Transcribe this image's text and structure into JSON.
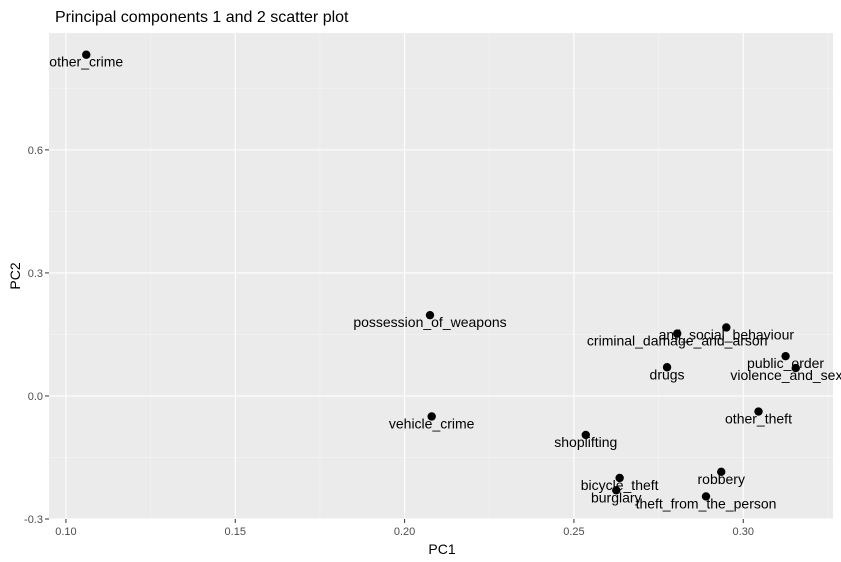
{
  "chart_data": {
    "type": "scatter",
    "title": "Principal components 1 and 2 scatter plot",
    "xlabel": "PC1",
    "ylabel": "PC2",
    "xlim": [
      0.095,
      0.3265
    ],
    "ylim": [
      -0.3,
      0.885
    ],
    "xticks": [
      0.1,
      0.15,
      0.2,
      0.25,
      0.3
    ],
    "xtick_labels": [
      "0.10",
      "0.15",
      "0.20",
      "0.25",
      "0.30"
    ],
    "yticks": [
      -0.3,
      0.0,
      0.3,
      0.6
    ],
    "ytick_labels": [
      "-0.3",
      "0.0",
      "0.3",
      "0.6"
    ],
    "grid": true,
    "points": [
      {
        "label": "other_crime",
        "x": 0.106,
        "y": 0.832
      },
      {
        "label": "possession_of_weapons",
        "x": 0.2075,
        "y": 0.197
      },
      {
        "label": "vehicle_crime",
        "x": 0.208,
        "y": -0.05
      },
      {
        "label": "shoplifting",
        "x": 0.2535,
        "y": -0.095
      },
      {
        "label": "criminal_damage_and_arson",
        "x": 0.2805,
        "y": 0.152
      },
      {
        "label": "anti_social_behaviour",
        "x": 0.295,
        "y": 0.167
      },
      {
        "label": "drugs",
        "x": 0.2775,
        "y": 0.07
      },
      {
        "label": "public_order",
        "x": 0.3125,
        "y": 0.097
      },
      {
        "label": "violence_and_sexual",
        "x": 0.3155,
        "y": 0.068
      },
      {
        "label": "other_theft",
        "x": 0.3045,
        "y": -0.038
      },
      {
        "label": "robbery",
        "x": 0.2935,
        "y": -0.185
      },
      {
        "label": "bicycle_theft",
        "x": 0.2635,
        "y": -0.2
      },
      {
        "label": "burglary",
        "x": 0.2625,
        "y": -0.23
      },
      {
        "label": "theft_from_the_person",
        "x": 0.289,
        "y": -0.245
      }
    ]
  }
}
